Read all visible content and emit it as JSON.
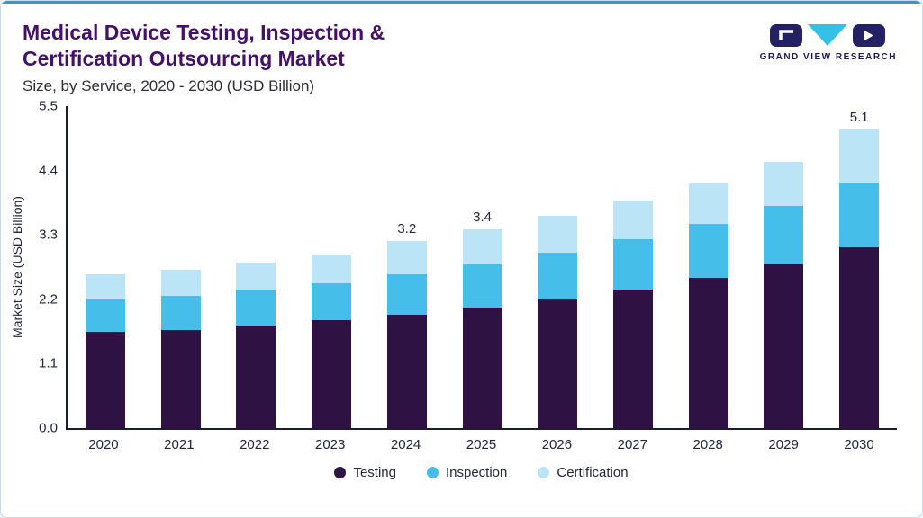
{
  "header": {
    "title_line1": "Medical Device Testing, Inspection &",
    "title_line2": "Certification Outsourcing Market",
    "subtitle": "Size, by Service, 2020 - 2030 (USD Billion)",
    "logo_text": "GRAND VIEW RESEARCH"
  },
  "colors": {
    "title": "#44106a",
    "accent_line": "#2d9cd0",
    "axis": "#1c1c30",
    "logo_navy": "#232064",
    "logo_cyan": "#35c0e8"
  },
  "chart_data": {
    "type": "bar",
    "stacked": true,
    "title": "Medical Device Testing, Inspection & Certification Outsourcing Market Size, by Service, 2020 - 2030 (USD Billion)",
    "xlabel": "",
    "ylabel": "Market Size (USD Billion)",
    "ylim": [
      0,
      5.5
    ],
    "yticks": [
      "0.0",
      "1.1",
      "2.2",
      "3.3",
      "4.4",
      "5.5"
    ],
    "grid": false,
    "legend_position": "bottom",
    "categories": [
      "2020",
      "2021",
      "2022",
      "2023",
      "2024",
      "2025",
      "2026",
      "2027",
      "2028",
      "2029",
      "2030"
    ],
    "series": [
      {
        "name": "Testing",
        "color": "#2e1244",
        "values": [
          1.65,
          1.68,
          1.75,
          1.84,
          1.93,
          2.06,
          2.2,
          2.36,
          2.56,
          2.8,
          3.08
        ]
      },
      {
        "name": "Inspection",
        "color": "#45bfe9",
        "values": [
          0.55,
          0.58,
          0.61,
          0.64,
          0.7,
          0.74,
          0.8,
          0.87,
          0.93,
          1.0,
          1.1
        ]
      },
      {
        "name": "Certification",
        "color": "#bce4f7",
        "values": [
          0.42,
          0.44,
          0.46,
          0.48,
          0.57,
          0.6,
          0.62,
          0.65,
          0.69,
          0.75,
          0.92
        ]
      }
    ],
    "totals": [
      2.62,
      2.7,
      2.82,
      2.96,
      3.2,
      3.4,
      3.62,
      3.88,
      4.18,
      4.55,
      5.1
    ],
    "bar_total_labels": [
      "",
      "",
      "",
      "",
      "3.2",
      "3.4",
      "",
      "",
      "",
      "",
      "5.1"
    ]
  }
}
